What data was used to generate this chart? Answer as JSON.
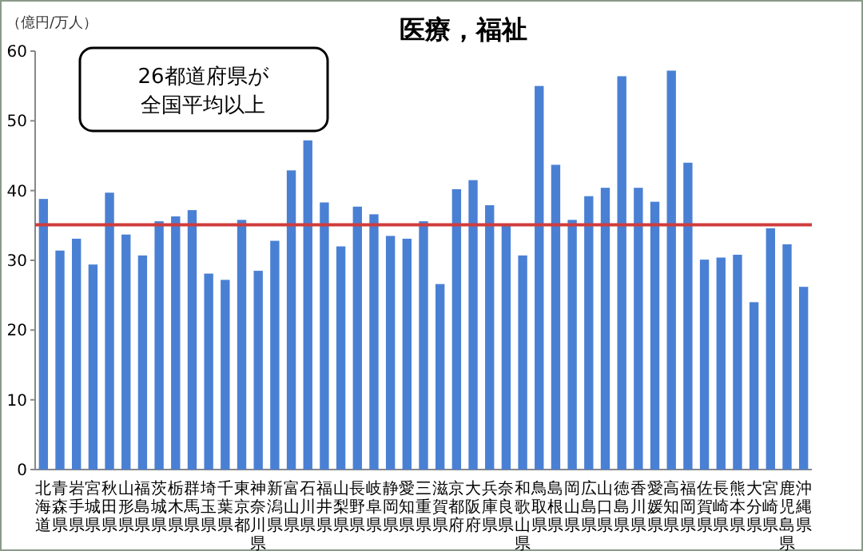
{
  "chart_data": {
    "type": "bar",
    "title": "医療，福祉",
    "ylabel": "（億円/万人）",
    "annotations": [
      "26都道府県が全国平均以上"
    ],
    "categories": [
      "北海道",
      "青森県",
      "岩手県",
      "宮城県",
      "秋田県",
      "山形県",
      "福島県",
      "茨城県",
      "栃木県",
      "群馬県",
      "埼玉県",
      "千葉県",
      "東京都",
      "神奈川県",
      "新潟県",
      "富山県",
      "石川県",
      "福井県",
      "山梨県",
      "長野県",
      "岐阜県",
      "静岡県",
      "愛知県",
      "三重県",
      "滋賀県",
      "京都府",
      "大阪府",
      "兵庫県",
      "奈良県",
      "和歌山県",
      "鳥取県",
      "島根県",
      "岡山県",
      "広島県",
      "山口県",
      "徳島県",
      "香川県",
      "愛媛県",
      "高知県",
      "福岡県",
      "佐賀県",
      "長崎県",
      "熊本県",
      "大分県",
      "宮崎県",
      "鹿児島県",
      "沖縄県"
    ],
    "series": [
      {
        "color": "#4a80d4",
        "values": [
          38.8,
          31.4,
          33.1,
          29.4,
          39.7,
          33.7,
          30.7,
          35.6,
          36.3,
          37.2,
          28.1,
          27.2,
          35.8,
          28.5,
          32.8,
          42.9,
          47.2,
          38.3,
          32.0,
          37.7,
          36.6,
          33.5,
          33.1,
          35.6,
          26.6,
          40.2,
          41.5,
          37.9,
          35.2,
          30.7,
          55.0,
          43.7,
          35.8,
          39.2,
          40.4,
          56.4,
          40.4,
          38.4,
          57.2,
          44.0,
          30.1,
          30.4,
          30.8,
          24.0,
          34.6,
          32.3,
          26.2
        ]
      }
    ],
    "ylim": [
      0,
      60
    ],
    "yticks": [
      0,
      10,
      20,
      30,
      40,
      50,
      60
    ],
    "ref_lines": [
      {
        "axis": "y",
        "value": 35.1,
        "color": "#d03c3c"
      }
    ]
  }
}
